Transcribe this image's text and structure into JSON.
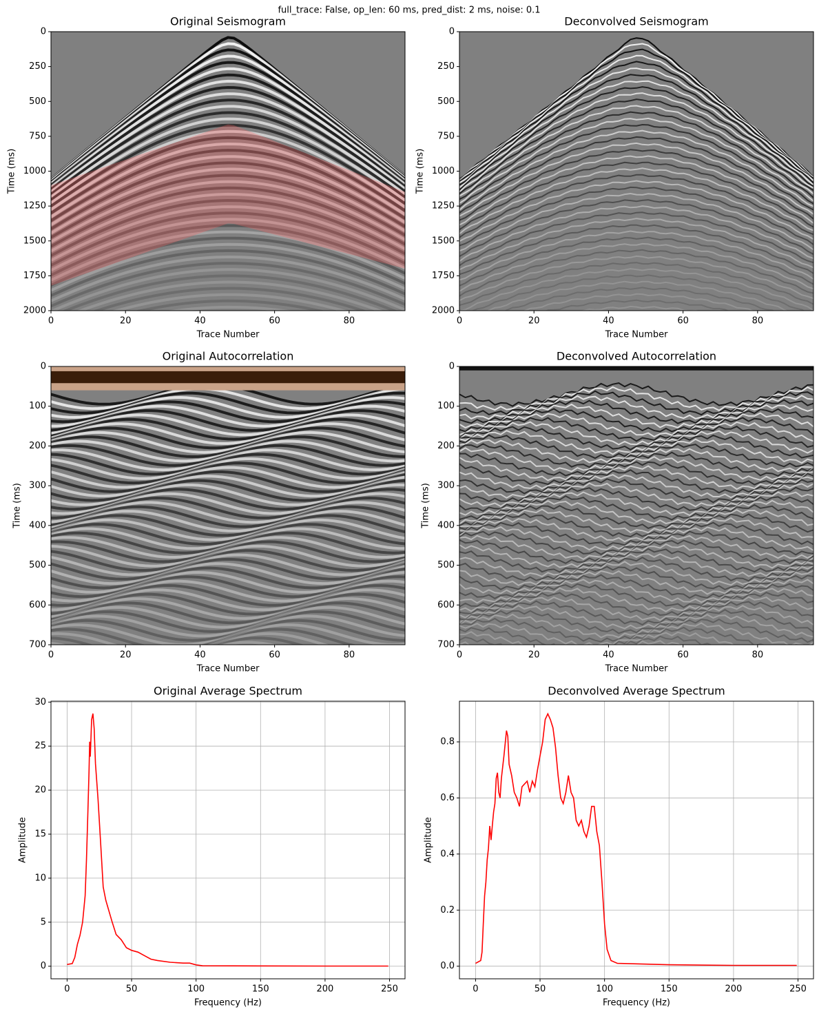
{
  "suptitle": "full_trace: False, op_len: 60 ms, pred_dist: 2 ms, noise: 0.1",
  "chart_data": [
    {
      "type": "image",
      "title": "Original Seismogram",
      "xlabel": "Trace Number",
      "ylabel": "Time (ms)",
      "xlim": [
        0,
        95
      ],
      "ylim": [
        2000,
        0
      ],
      "xticks": [
        0,
        20,
        40,
        60,
        80
      ],
      "yticks": [
        0,
        250,
        500,
        750,
        1000,
        1250,
        1500,
        1750,
        2000
      ]
    },
    {
      "type": "image",
      "title": "Deconvolved Seismogram",
      "xlabel": "Trace Number",
      "ylabel": "Time (ms)",
      "xlim": [
        0,
        95
      ],
      "ylim": [
        2000,
        0
      ],
      "xticks": [
        0,
        20,
        40,
        60,
        80
      ],
      "yticks": [
        0,
        250,
        500,
        750,
        1000,
        1250,
        1500,
        1750,
        2000
      ]
    },
    {
      "type": "image",
      "title": "Original Autocorrelation",
      "xlabel": "Trace Number",
      "ylabel": "Time (ms)",
      "xlim": [
        0,
        95
      ],
      "ylim": [
        700,
        0
      ],
      "xticks": [
        0,
        20,
        40,
        60,
        80
      ],
      "yticks": [
        0,
        100,
        200,
        300,
        400,
        500,
        600,
        700
      ]
    },
    {
      "type": "image",
      "title": "Deconvolved Autocorrelation",
      "xlabel": "Trace Number",
      "ylabel": "Time (ms)",
      "xlim": [
        0,
        95
      ],
      "ylim": [
        700,
        0
      ],
      "xticks": [
        0,
        20,
        40,
        60,
        80
      ],
      "yticks": [
        0,
        100,
        200,
        300,
        400,
        500,
        600,
        700
      ]
    },
    {
      "type": "line",
      "title": "Original Average Spectrum",
      "xlabel": "Frequency (Hz)",
      "ylabel": "Amplitude",
      "grid": true,
      "color": "#ff0000",
      "xlim": [
        -12.5,
        262
      ],
      "ylim": [
        -1.43,
        30.1
      ],
      "xticks": [
        0,
        50,
        100,
        150,
        200,
        250
      ],
      "yticks": [
        0,
        5,
        10,
        15,
        20,
        25,
        30
      ],
      "x": [
        0,
        4,
        6,
        8,
        10,
        12,
        14,
        15,
        16,
        17,
        17.5,
        18,
        19,
        20,
        21,
        22,
        24,
        26,
        28,
        30,
        32,
        35,
        38,
        42,
        46,
        50,
        55,
        60,
        65,
        70,
        80,
        90,
        95,
        100,
        105,
        150,
        200,
        249
      ],
      "values": [
        0.2,
        0.3,
        1,
        2.5,
        3.5,
        5,
        8,
        12,
        17,
        22,
        25.5,
        23.8,
        28,
        28.7,
        27,
        23,
        19,
        14,
        9,
        7.5,
        6.5,
        5,
        3.6,
        3,
        2.1,
        1.8,
        1.6,
        1.2,
        0.8,
        0.65,
        0.45,
        0.35,
        0.35,
        0.15,
        0.05,
        0.03,
        0.02,
        0.02
      ]
    },
    {
      "type": "line",
      "title": "Deconvolved Average Spectrum",
      "xlabel": "Frequency (Hz)",
      "ylabel": "Amplitude",
      "grid": true,
      "color": "#ff0000",
      "xlim": [
        -12.5,
        262
      ],
      "ylim": [
        -0.045,
        0.945
      ],
      "xticks": [
        0,
        50,
        100,
        150,
        200,
        250
      ],
      "yticks": [
        {
          "value": 0,
          "label": "0.0"
        },
        0.2,
        0.4,
        0.6,
        0.8
      ],
      "x": [
        0,
        4,
        5,
        6,
        7,
        8,
        9,
        10,
        11,
        12,
        13,
        14,
        15,
        16,
        17,
        18,
        19,
        20,
        22,
        24,
        25,
        26,
        28,
        30,
        32,
        34,
        36,
        38,
        40,
        42,
        44,
        46,
        48,
        50,
        52,
        54,
        56,
        58,
        60,
        62,
        64,
        66,
        68,
        70,
        72,
        74,
        76,
        78,
        80,
        82,
        84,
        86,
        88,
        90,
        92,
        94,
        96,
        98,
        100,
        102,
        105,
        110,
        150,
        200,
        249
      ],
      "values": [
        0.01,
        0.02,
        0.05,
        0.15,
        0.25,
        0.3,
        0.38,
        0.42,
        0.5,
        0.45,
        0.5,
        0.55,
        0.58,
        0.67,
        0.69,
        0.62,
        0.6,
        0.67,
        0.75,
        0.84,
        0.82,
        0.72,
        0.68,
        0.62,
        0.6,
        0.57,
        0.64,
        0.65,
        0.66,
        0.62,
        0.66,
        0.64,
        0.7,
        0.75,
        0.8,
        0.88,
        0.9,
        0.88,
        0.85,
        0.78,
        0.68,
        0.6,
        0.58,
        0.62,
        0.68,
        0.62,
        0.6,
        0.52,
        0.5,
        0.52,
        0.48,
        0.46,
        0.5,
        0.57,
        0.57,
        0.48,
        0.43,
        0.3,
        0.15,
        0.06,
        0.02,
        0.01,
        0.005,
        0.003,
        0.003
      ]
    }
  ]
}
